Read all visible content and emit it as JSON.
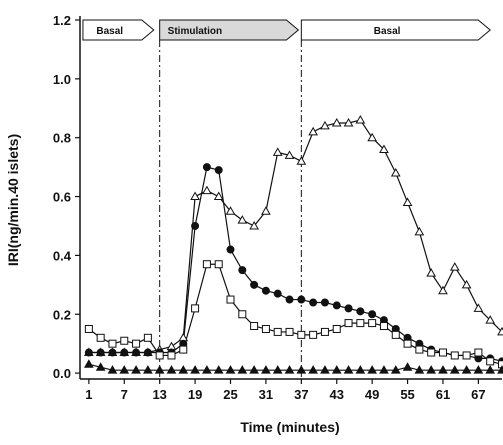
{
  "chart_data": {
    "type": "line",
    "x_label": "Time (minutes)",
    "y_label": "IRI(ng/min.40 islets)",
    "x": [
      1,
      3,
      5,
      7,
      9,
      11,
      13,
      15,
      17,
      19,
      21,
      23,
      25,
      27,
      29,
      31,
      33,
      35,
      37,
      39,
      41,
      43,
      45,
      47,
      49,
      51,
      53,
      55,
      57,
      59,
      61,
      63,
      65,
      67,
      69,
      71
    ],
    "series": [
      {
        "marker": "open-triangle",
        "color": "#111111",
        "values": [
          0.07,
          0.07,
          0.07,
          0.07,
          0.07,
          0.07,
          0.08,
          0.09,
          0.12,
          0.6,
          0.62,
          0.6,
          0.55,
          0.52,
          0.5,
          0.55,
          0.75,
          0.74,
          0.72,
          0.82,
          0.84,
          0.85,
          0.85,
          0.86,
          0.8,
          0.76,
          0.68,
          0.58,
          0.48,
          0.34,
          0.28,
          0.36,
          0.3,
          0.22,
          0.18,
          0.14
        ]
      },
      {
        "marker": "filled-circle",
        "color": "#111111",
        "values": [
          0.07,
          0.07,
          0.07,
          0.07,
          0.07,
          0.07,
          0.07,
          0.07,
          0.1,
          0.5,
          0.7,
          0.69,
          0.42,
          0.35,
          0.3,
          0.28,
          0.27,
          0.25,
          0.25,
          0.24,
          0.24,
          0.23,
          0.22,
          0.21,
          0.2,
          0.18,
          0.15,
          0.12,
          0.1,
          0.08,
          0.07,
          0.06,
          0.06,
          0.05,
          0.05,
          0.04
        ]
      },
      {
        "marker": "open-square",
        "color": "#111111",
        "values": [
          0.15,
          0.12,
          0.1,
          0.11,
          0.1,
          0.12,
          0.06,
          0.06,
          0.08,
          0.22,
          0.37,
          0.37,
          0.25,
          0.2,
          0.16,
          0.15,
          0.14,
          0.14,
          0.13,
          0.13,
          0.14,
          0.15,
          0.17,
          0.17,
          0.17,
          0.16,
          0.13,
          0.1,
          0.08,
          0.07,
          0.07,
          0.06,
          0.06,
          0.07,
          0.04,
          0.03
        ]
      },
      {
        "marker": "filled-triangle",
        "color": "#111111",
        "values": [
          0.03,
          0.02,
          0.01,
          0.01,
          0.01,
          0.01,
          0.01,
          0.01,
          0.01,
          0.01,
          0.01,
          0.01,
          0.01,
          0.01,
          0.01,
          0.01,
          0.01,
          0.01,
          0.01,
          0.01,
          0.01,
          0.01,
          0.01,
          0.01,
          0.01,
          0.01,
          0.01,
          0.02,
          0.01,
          0.01,
          0.01,
          0.01,
          0.01,
          0.01,
          0.01,
          0.01
        ]
      }
    ],
    "phases": [
      {
        "label": "Basal",
        "start": 0,
        "end": 12,
        "color": "#ffffff"
      },
      {
        "label": "Stimulation",
        "start": 13,
        "end": 36.5,
        "color": "#d9d9d9"
      },
      {
        "label": "Basal",
        "start": 37,
        "end": 69,
        "color": "#ffffff"
      }
    ],
    "xlim": [
      -0.5,
      71
    ],
    "ylim": [
      -0.02,
      1.2
    ],
    "xticks": [
      1,
      7,
      13,
      19,
      25,
      31,
      37,
      43,
      49,
      55,
      61,
      67
    ],
    "yticks": [
      {
        "value": 0,
        "label": "0.0"
      },
      {
        "value": 0.2,
        "label": "0.2"
      },
      {
        "value": 0.4,
        "label": "0.4"
      },
      {
        "value": 0.6,
        "label": "0.6"
      },
      {
        "value": 0.8,
        "label": "0.8"
      },
      {
        "value": 1.0,
        "label": "1.0"
      },
      {
        "value": 1.2,
        "label": "1.2"
      }
    ]
  }
}
